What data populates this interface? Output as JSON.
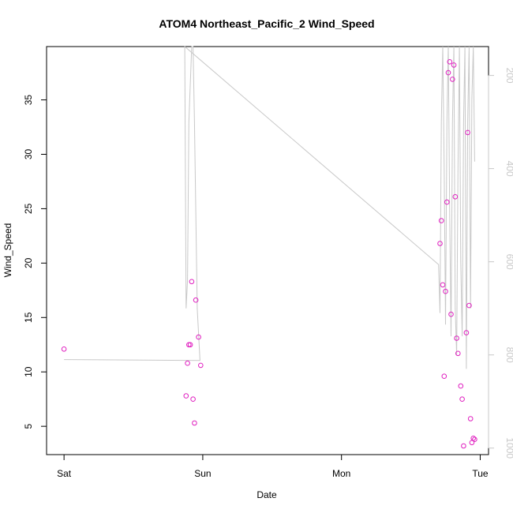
{
  "chart_data": {
    "type": "scatter",
    "title": "ATOM4 Northeast_Pacific_2 Wind_Speed",
    "xlabel": "Date",
    "ylabel": "Wind_Speed",
    "x_ticks": [
      {
        "label": "Sat",
        "value": 0
      },
      {
        "label": "Sun",
        "value": 1
      },
      {
        "label": "Mon",
        "value": 2
      },
      {
        "label": "Tue",
        "value": 3
      }
    ],
    "y_ticks": [
      5,
      10,
      15,
      20,
      25,
      30,
      35
    ],
    "y_right_ticks": [
      200,
      400,
      600,
      800,
      1000
    ],
    "xlim": [
      -0.126,
      3.06
    ],
    "ylim": [
      2.4,
      39.9
    ],
    "y_right_lim": [
      1014,
      138
    ],
    "grid": false,
    "colors": {
      "points": "#e020c0",
      "line": "#c8c8c8",
      "right_axis": "#c8c8c8",
      "axis": "#000000"
    },
    "series": [
      {
        "points": [
          [
            0.0,
            12.1
          ],
          [
            0.88,
            7.8
          ],
          [
            0.89,
            10.8
          ],
          [
            0.9,
            12.5
          ],
          [
            0.91,
            12.5
          ],
          [
            0.92,
            18.3
          ],
          [
            0.93,
            7.5
          ],
          [
            0.94,
            5.3
          ],
          [
            0.95,
            16.6
          ],
          [
            0.97,
            13.2
          ],
          [
            0.985,
            10.6
          ],
          [
            2.71,
            21.8
          ],
          [
            2.72,
            23.9
          ],
          [
            2.73,
            18.0
          ],
          [
            2.74,
            9.6
          ],
          [
            2.75,
            17.4
          ],
          [
            2.76,
            25.6
          ],
          [
            2.77,
            37.5
          ],
          [
            2.78,
            38.5
          ],
          [
            2.79,
            15.3
          ],
          [
            2.8,
            36.9
          ],
          [
            2.81,
            38.2
          ],
          [
            2.82,
            26.1
          ],
          [
            2.83,
            13.1
          ],
          [
            2.84,
            11.7
          ],
          [
            2.86,
            8.7
          ],
          [
            2.87,
            7.5
          ],
          [
            2.88,
            3.2
          ],
          [
            2.9,
            13.6
          ],
          [
            2.91,
            32.0
          ],
          [
            2.92,
            16.1
          ],
          [
            2.93,
            5.7
          ],
          [
            2.94,
            3.5
          ],
          [
            2.95,
            3.9
          ],
          [
            2.96,
            3.8
          ]
        ]
      },
      {
        "points": [
          [
            0.0,
            810
          ],
          [
            0.98,
            812
          ],
          [
            0.96,
            700
          ],
          [
            0.94,
            300
          ],
          [
            0.93,
            138
          ],
          [
            0.92,
            138
          ],
          [
            0.9,
            300
          ],
          [
            0.89,
            640
          ],
          [
            0.88,
            700
          ],
          [
            0.87,
            138
          ],
          [
            2.7,
            606
          ],
          [
            2.71,
            710
          ],
          [
            2.72,
            300
          ],
          [
            2.73,
            138
          ],
          [
            2.74,
            400
          ],
          [
            2.75,
            735
          ],
          [
            2.76,
            300
          ],
          [
            2.77,
            138
          ],
          [
            2.78,
            500
          ],
          [
            2.79,
            760
          ],
          [
            2.8,
            300
          ],
          [
            2.81,
            138
          ],
          [
            2.82,
            700
          ],
          [
            2.83,
            800
          ],
          [
            2.84,
            400
          ],
          [
            2.85,
            138
          ],
          [
            2.86,
            600
          ],
          [
            2.87,
            760
          ],
          [
            2.88,
            300
          ],
          [
            2.89,
            138
          ],
          [
            2.9,
            830
          ],
          [
            2.91,
            300
          ],
          [
            2.92,
            138
          ],
          [
            2.93,
            700
          ],
          [
            2.94,
            250
          ],
          [
            2.95,
            138
          ],
          [
            2.96,
            385
          ]
        ]
      }
    ]
  }
}
